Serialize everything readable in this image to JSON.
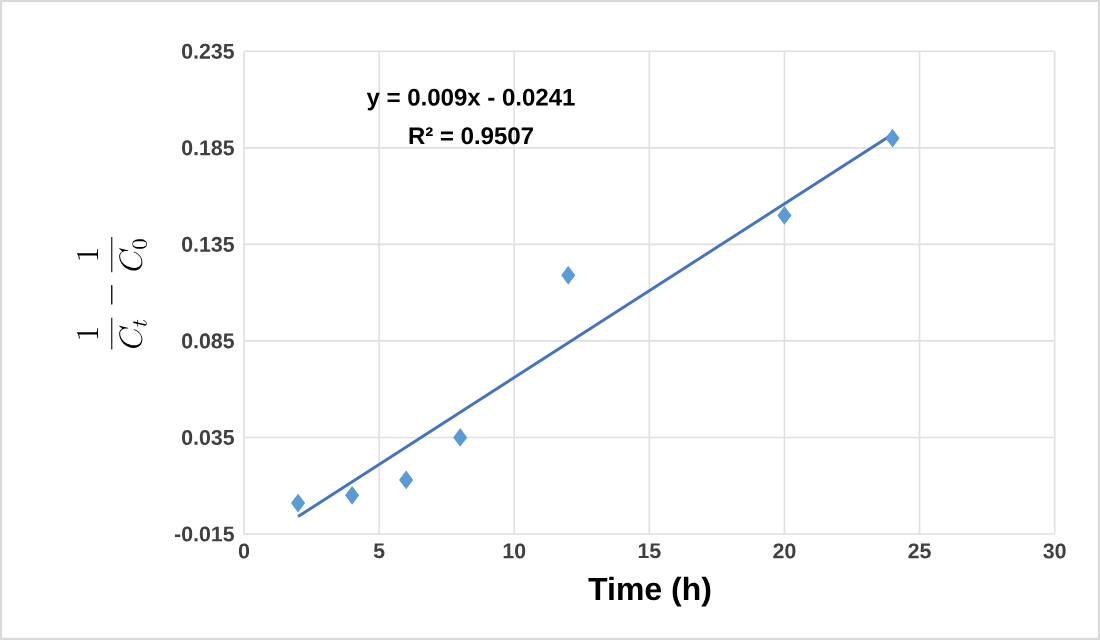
{
  "chart_data": {
    "type": "scatter",
    "xlabel": "Time (h)",
    "ylabel": "\\frac{1}{C_t}-\\frac{1}{C_0}",
    "annotations": [
      "y = 0.009x - 0.0241",
      "R² = 0.9507"
    ],
    "series": [
      {
        "color": "#5b9bd5",
        "marker": "diamond",
        "x": [
          2,
          4,
          6,
          8,
          12,
          20,
          24
        ],
        "values": [
          0.001,
          0.005,
          0.013,
          0.035,
          0.119,
          0.15,
          0.19
        ]
      },
      {
        "type": "line",
        "color": "#4472c4",
        "line_style": "solid",
        "x": [
          2,
          24
        ],
        "values": [
          -0.006,
          0.192
        ]
      }
    ],
    "xlim": [
      0,
      30
    ],
    "xticks": [
      0,
      5,
      10,
      15,
      20,
      25,
      30
    ],
    "ylim": [
      -0.015,
      0.235
    ],
    "yticks": [
      -0.015,
      0.035,
      0.085,
      0.135,
      0.185,
      0.235
    ],
    "grid": true
  }
}
